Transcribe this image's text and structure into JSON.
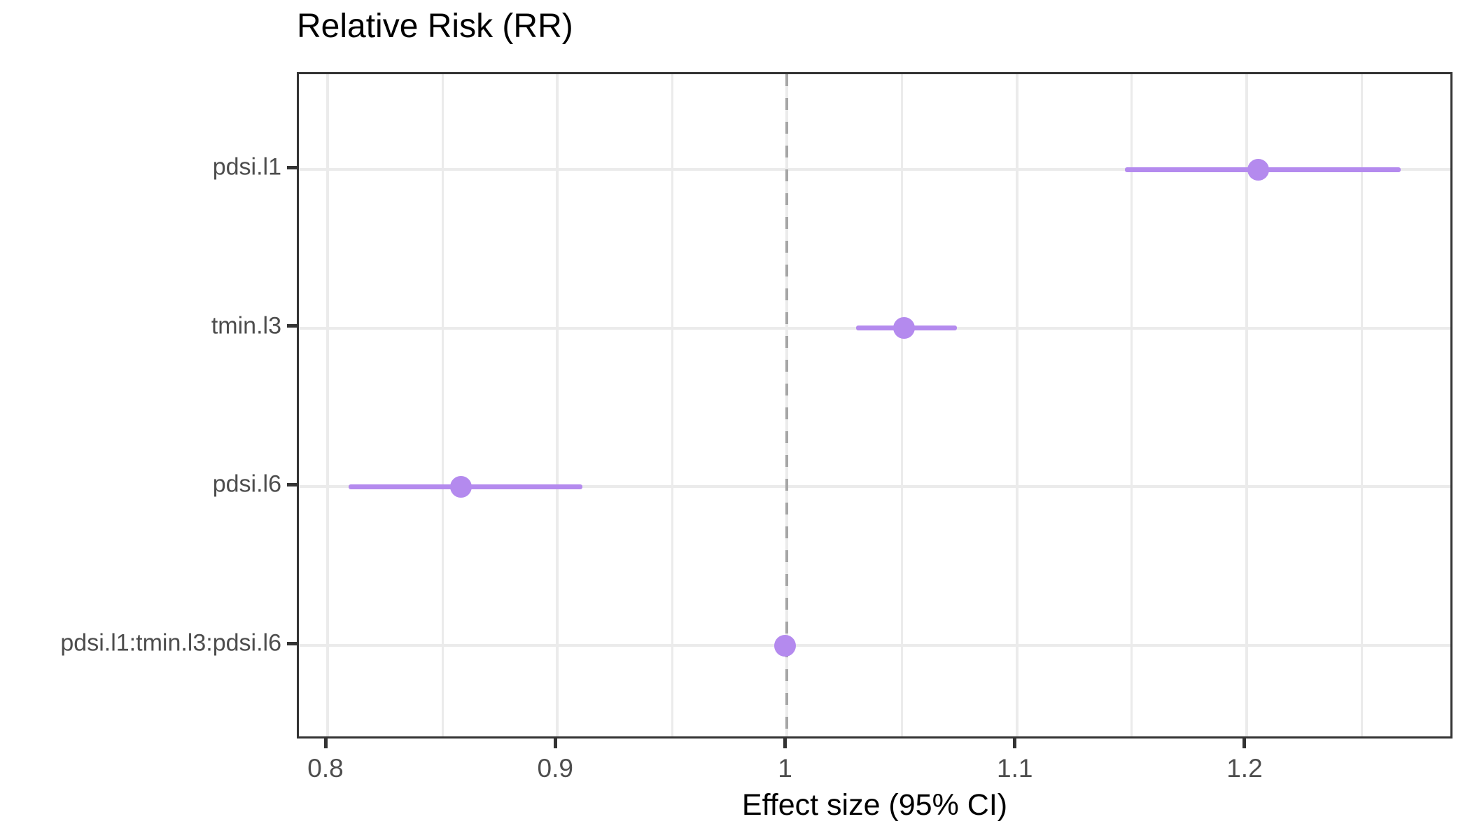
{
  "chart_data": {
    "type": "scatter",
    "subtype": "forest-pointrange",
    "title": "Relative Risk (RR)",
    "xlabel": "Effect size (95% CI)",
    "ylabel": "",
    "xlim": [
      0.7875,
      1.2905
    ],
    "x_ticks": [
      0.8,
      0.9,
      1.0,
      1.1,
      1.2
    ],
    "x_tick_labels": [
      "0.8",
      "0.9",
      "1",
      "1.1",
      "1.2"
    ],
    "minor_grid_step": 0.05,
    "reference_line": 1.0,
    "grid": true,
    "legend": "none",
    "categories": [
      "pdsi.l1",
      "tmin.l3",
      "pdsi.l6",
      "pdsi.l1:tmin.l3:pdsi.l6"
    ],
    "points": [
      {
        "label": "pdsi.l1",
        "estimate": 1.205,
        "ci_low": 1.147,
        "ci_high": 1.267
      },
      {
        "label": "tmin.l3",
        "estimate": 1.051,
        "ci_low": 1.03,
        "ci_high": 1.074
      },
      {
        "label": "pdsi.l6",
        "estimate": 0.858,
        "ci_low": 0.809,
        "ci_high": 0.911
      },
      {
        "label": "pdsi.l1:tmin.l3:pdsi.l6",
        "estimate": 0.999,
        "ci_low": 0.996,
        "ci_high": 1.002
      }
    ],
    "colors": {
      "accent": "#b48aee",
      "grid": "#ebebeb",
      "panel_border": "#333333",
      "reference_dash": "#a6a6a6",
      "tick": "#333333",
      "tick_label": "#4d4d4d",
      "title": "#000000"
    }
  }
}
